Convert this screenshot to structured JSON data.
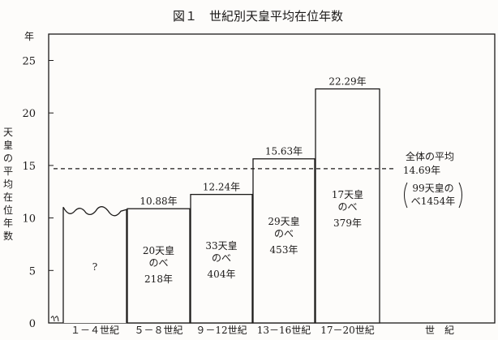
{
  "chart_data": {
    "type": "bar",
    "title": "図１　世紀別天皇平均在位年数",
    "ylabel_unit": "年",
    "ylabel_chars": [
      "天",
      "皇",
      "の",
      "平",
      "均",
      "在",
      "位",
      "年",
      "数"
    ],
    "xlabel": "世　紀",
    "ylim": [
      0,
      27
    ],
    "yticks": [
      "0",
      "5",
      "10",
      "15",
      "20",
      "25"
    ],
    "categories": [
      "１－４世紀",
      "５－８世紀",
      "９－12世紀",
      "13－16世紀",
      "17－20世紀"
    ],
    "values": [
      10.8,
      10.88,
      12.24,
      15.63,
      22.29
    ],
    "value_labels": [
      "",
      "10.88年",
      "12.24年",
      "15.63年",
      "22.29年"
    ],
    "bar_notes": [
      [
        "?"
      ],
      [
        "20天皇",
        "のべ",
        "218年"
      ],
      [
        "33天皇",
        "のべ",
        "404年"
      ],
      [
        "29天皇",
        "のべ",
        "453年"
      ],
      [
        "17天皇",
        "のべ",
        "379年"
      ]
    ],
    "average": {
      "value": 14.69,
      "label": "全体の平均",
      "value_label": "14.69年",
      "note_lines": [
        "99天皇の",
        "べ1454年"
      ]
    },
    "colors": {
      "ink": "#1c1a19",
      "background": "#fdfcfa"
    }
  }
}
